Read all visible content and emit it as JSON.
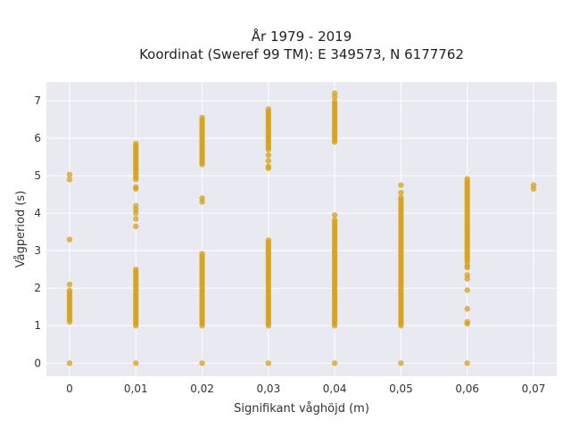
{
  "chart_data": {
    "type": "scatter",
    "title": [
      "År 1979 - 2019",
      "Koordinat (Sweref 99 TM): E 349573, N 6177762"
    ],
    "xlabel": "Signifikant våghöjd (m)",
    "ylabel": "Vågperiod (s)",
    "xlim": [
      -0.0035,
      0.0735
    ],
    "ylim": [
      -0.35,
      7.5
    ],
    "xticks": [
      0,
      0.01,
      0.02,
      0.03,
      0.04,
      0.05,
      0.06,
      0.07
    ],
    "xtick_labels": [
      "0",
      "0,01",
      "0,02",
      "0,03",
      "0,04",
      "0,05",
      "0,06",
      "0,07"
    ],
    "yticks": [
      0,
      1,
      2,
      3,
      4,
      5,
      6,
      7
    ],
    "ytick_labels": [
      "0",
      "1",
      "2",
      "3",
      "4",
      "5",
      "6",
      "7"
    ],
    "grid": true,
    "legend": "none",
    "marker_color": "#d4a017",
    "plot_background": "#e9e9f1",
    "series": [
      {
        "segments": [
          {
            "x": 0.0,
            "y_from": 1.1,
            "y_to": 1.95
          },
          {
            "x": 0.01,
            "y_from": 1.0,
            "y_to": 2.5
          },
          {
            "x": 0.01,
            "y_from": 4.9,
            "y_to": 5.9
          },
          {
            "x": 0.02,
            "y_from": 1.0,
            "y_to": 2.95
          },
          {
            "x": 0.02,
            "y_from": 5.35,
            "y_to": 6.58
          },
          {
            "x": 0.03,
            "y_from": 1.0,
            "y_to": 3.3
          },
          {
            "x": 0.03,
            "y_from": 5.7,
            "y_to": 6.8
          },
          {
            "x": 0.04,
            "y_from": 1.0,
            "y_to": 3.85
          },
          {
            "x": 0.04,
            "y_from": 5.9,
            "y_to": 7.0
          },
          {
            "x": 0.05,
            "y_from": 1.0,
            "y_to": 4.45
          },
          {
            "x": 0.06,
            "y_from": 2.7,
            "y_to": 4.95
          }
        ],
        "points": [
          {
            "x": 0.0,
            "y": 0.0
          },
          {
            "x": 0.0,
            "y": 3.3
          },
          {
            "x": 0.0,
            "y": 2.1
          },
          {
            "x": 0.0,
            "y": 4.9
          },
          {
            "x": 0.0,
            "y": 5.03
          },
          {
            "x": 0.01,
            "y": 0.0
          },
          {
            "x": 0.01,
            "y": 3.65
          },
          {
            "x": 0.01,
            "y": 3.85
          },
          {
            "x": 0.01,
            "y": 4.0
          },
          {
            "x": 0.01,
            "y": 4.1
          },
          {
            "x": 0.01,
            "y": 4.2
          },
          {
            "x": 0.01,
            "y": 4.65
          },
          {
            "x": 0.01,
            "y": 4.7
          },
          {
            "x": 0.02,
            "y": 0.0
          },
          {
            "x": 0.02,
            "y": 4.3
          },
          {
            "x": 0.02,
            "y": 4.4
          },
          {
            "x": 0.02,
            "y": 5.3
          },
          {
            "x": 0.03,
            "y": 0.0
          },
          {
            "x": 0.03,
            "y": 5.2
          },
          {
            "x": 0.03,
            "y": 5.25
          },
          {
            "x": 0.03,
            "y": 5.4
          },
          {
            "x": 0.03,
            "y": 5.55
          },
          {
            "x": 0.04,
            "y": 0.0
          },
          {
            "x": 0.04,
            "y": 3.95
          },
          {
            "x": 0.04,
            "y": 7.1
          },
          {
            "x": 0.04,
            "y": 7.2
          },
          {
            "x": 0.05,
            "y": 0.0
          },
          {
            "x": 0.05,
            "y": 4.55
          },
          {
            "x": 0.05,
            "y": 4.75
          },
          {
            "x": 0.06,
            "y": 0.0
          },
          {
            "x": 0.06,
            "y": 1.05
          },
          {
            "x": 0.06,
            "y": 1.1
          },
          {
            "x": 0.06,
            "y": 1.45
          },
          {
            "x": 0.06,
            "y": 1.95
          },
          {
            "x": 0.06,
            "y": 2.25
          },
          {
            "x": 0.06,
            "y": 2.35
          },
          {
            "x": 0.06,
            "y": 2.55
          },
          {
            "x": 0.06,
            "y": 2.6
          },
          {
            "x": 0.07,
            "y": 4.65
          },
          {
            "x": 0.07,
            "y": 4.75
          }
        ]
      }
    ]
  }
}
